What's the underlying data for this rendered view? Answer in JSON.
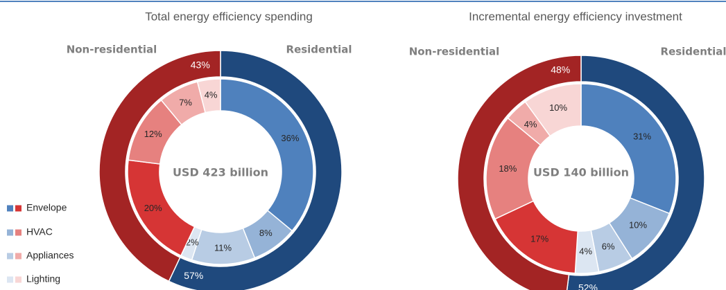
{
  "chart_data": [
    {
      "type": "nested-donut",
      "title": "Total energy efficiency spending",
      "center_label": "USD 423 billion",
      "outer": {
        "categories": [
          "Residential",
          "Non-residential"
        ],
        "values": [
          57,
          43
        ],
        "value_labels": [
          "57%",
          "43%"
        ],
        "colors": [
          "#1f497d",
          "#a32424"
        ]
      },
      "inner": {
        "categories": [
          "Envelope",
          "HVAC",
          "Appliances",
          "Lighting"
        ],
        "series": [
          {
            "name": "Residential",
            "values": [
              36,
              8,
              11,
              2
            ],
            "value_labels": [
              "36%",
              "8%",
              "11%",
              "2%"
            ],
            "colors": [
              "#4f81bd",
              "#95b3d7",
              "#b8cce4",
              "#dce6f2"
            ]
          },
          {
            "name": "Non-residential",
            "values": [
              20,
              12,
              7,
              4
            ],
            "value_labels": [
              "20%",
              "12%",
              "7%",
              "4%"
            ],
            "colors": [
              "#d63535",
              "#e6817f",
              "#f0aba9",
              "#f8d6d5"
            ]
          }
        ]
      }
    },
    {
      "type": "nested-donut",
      "title": "Incremental energy efficiency investment",
      "center_label": "USD 140 billion",
      "outer": {
        "categories": [
          "Residential",
          "Non-residential"
        ],
        "values": [
          52,
          48
        ],
        "value_labels": [
          "52%",
          "48%"
        ],
        "colors": [
          "#1f497d",
          "#a32424"
        ]
      },
      "inner": {
        "categories": [
          "Envelope",
          "HVAC",
          "Appliances",
          "Lighting"
        ],
        "series": [
          {
            "name": "Residential",
            "values": [
              31,
              10,
              6,
              4
            ],
            "value_labels": [
              "31%",
              "10%",
              "6%",
              "4%"
            ],
            "colors": [
              "#4f81bd",
              "#95b3d7",
              "#b8cce4",
              "#dce6f2"
            ]
          },
          {
            "name": "Non-residential",
            "values": [
              17,
              18,
              4,
              10
            ],
            "value_labels": [
              "17%",
              "18%",
              "4%",
              "10%"
            ],
            "colors": [
              "#d63535",
              "#e6817f",
              "#f0aba9",
              "#f8d6d5"
            ]
          }
        ]
      }
    }
  ],
  "legend": {
    "labels": [
      "Envelope",
      "HVAC",
      "Appliances",
      "Lighting"
    ],
    "position": "bottom-left"
  }
}
